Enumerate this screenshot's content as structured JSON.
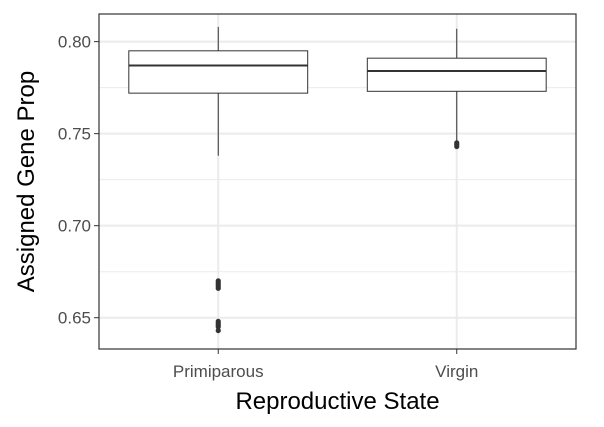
{
  "chart_data": {
    "type": "boxplot",
    "xlabel": "Reproductive State",
    "ylabel": "Assigned Gene Prop",
    "categories": [
      "Primiparous",
      "Virgin"
    ],
    "ylim": [
      0.633,
      0.815
    ],
    "yticks": [
      0.65,
      0.7,
      0.75,
      0.8
    ],
    "ytick_labels": [
      "0.65",
      "0.70",
      "0.75",
      "0.80"
    ],
    "grid": true,
    "boxes": [
      {
        "name": "Primiparous",
        "q1": 0.772,
        "median": 0.787,
        "q3": 0.795,
        "whisker_low": 0.738,
        "whisker_high": 0.808,
        "outliers": [
          0.67,
          0.669,
          0.668,
          0.667,
          0.666,
          0.648,
          0.647,
          0.646,
          0.645,
          0.643
        ]
      },
      {
        "name": "Virgin",
        "q1": 0.773,
        "median": 0.784,
        "q3": 0.791,
        "whisker_low": 0.746,
        "whisker_high": 0.807,
        "outliers": [
          0.745,
          0.744,
          0.743
        ]
      }
    ]
  },
  "colors": {
    "grid": "#ebebeb",
    "panel_border": "#333333",
    "box_fill": "#ffffff",
    "box_stroke": "#333333",
    "outlier": "#333333"
  }
}
